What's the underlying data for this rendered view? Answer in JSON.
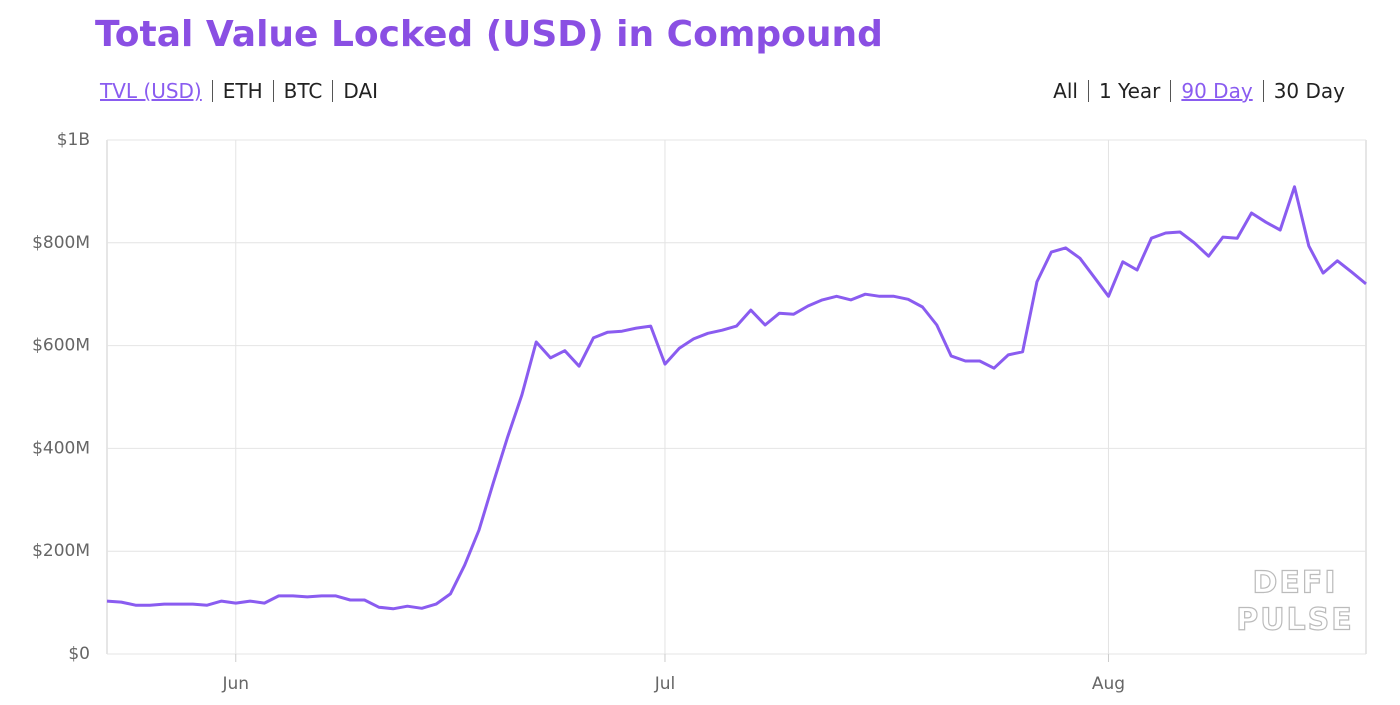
{
  "chart_data": {
    "type": "line",
    "title": "Total Value Locked (USD) in Compound",
    "tabs": [
      "TVL (USD)",
      "ETH",
      "BTC",
      "DAI"
    ],
    "selected_tab": 0,
    "ranges": [
      "All",
      "1 Year",
      "90 Day",
      "30 Day"
    ],
    "selected_range": 2,
    "watermark": [
      "DEFI",
      "PULSE"
    ],
    "categories": [
      null,
      null,
      null,
      null,
      null,
      null,
      null,
      null,
      null,
      "Jun",
      null,
      null,
      null,
      null,
      null,
      null,
      null,
      null,
      null,
      null,
      null,
      null,
      null,
      null,
      null,
      null,
      null,
      null,
      null,
      null,
      null,
      null,
      null,
      null,
      null,
      null,
      null,
      null,
      null,
      "Jul",
      null,
      null,
      null,
      null,
      null,
      null,
      null,
      null,
      null,
      null,
      null,
      null,
      null,
      null,
      null,
      null,
      null,
      null,
      null,
      null,
      null,
      null,
      null,
      null,
      null,
      null,
      null,
      null,
      null,
      null,
      "Aug",
      null,
      null,
      null,
      null,
      null,
      null,
      null,
      null,
      null,
      null,
      null,
      null,
      null,
      null,
      null,
      null,
      null,
      null
    ],
    "series": [
      {
        "name": "TVL (USD)",
        "color": "#8a5cf0",
        "values": [
          103,
          101,
          95,
          95,
          97,
          97,
          97,
          95,
          103,
          99,
          103,
          99,
          113,
          113,
          111,
          113,
          113,
          105,
          105,
          91,
          88,
          93,
          89,
          97,
          117,
          173,
          241,
          333,
          422,
          504,
          607,
          576,
          590,
          560,
          615,
          626,
          628,
          634,
          638,
          564,
          595,
          613,
          624,
          630,
          638,
          669,
          640,
          663,
          661,
          677,
          689,
          696,
          689,
          700,
          696,
          696,
          690,
          675,
          640,
          580,
          570,
          570,
          556,
          582,
          588,
          724,
          782,
          790,
          770,
          733,
          696,
          763,
          747,
          809,
          819,
          821,
          800,
          774,
          811,
          809,
          858,
          840,
          825,
          909,
          794,
          741,
          765,
          743,
          720
        ]
      }
    ],
    "ylim": [
      0,
      1000
    ],
    "yticks": [
      {
        "value": 0,
        "label": "$0"
      },
      {
        "value": 200,
        "label": "$200M"
      },
      {
        "value": 400,
        "label": "$400M"
      },
      {
        "value": 600,
        "label": "$600M"
      },
      {
        "value": 800,
        "label": "$800M"
      },
      {
        "value": 1000,
        "label": "$1B"
      }
    ],
    "grid": true
  }
}
